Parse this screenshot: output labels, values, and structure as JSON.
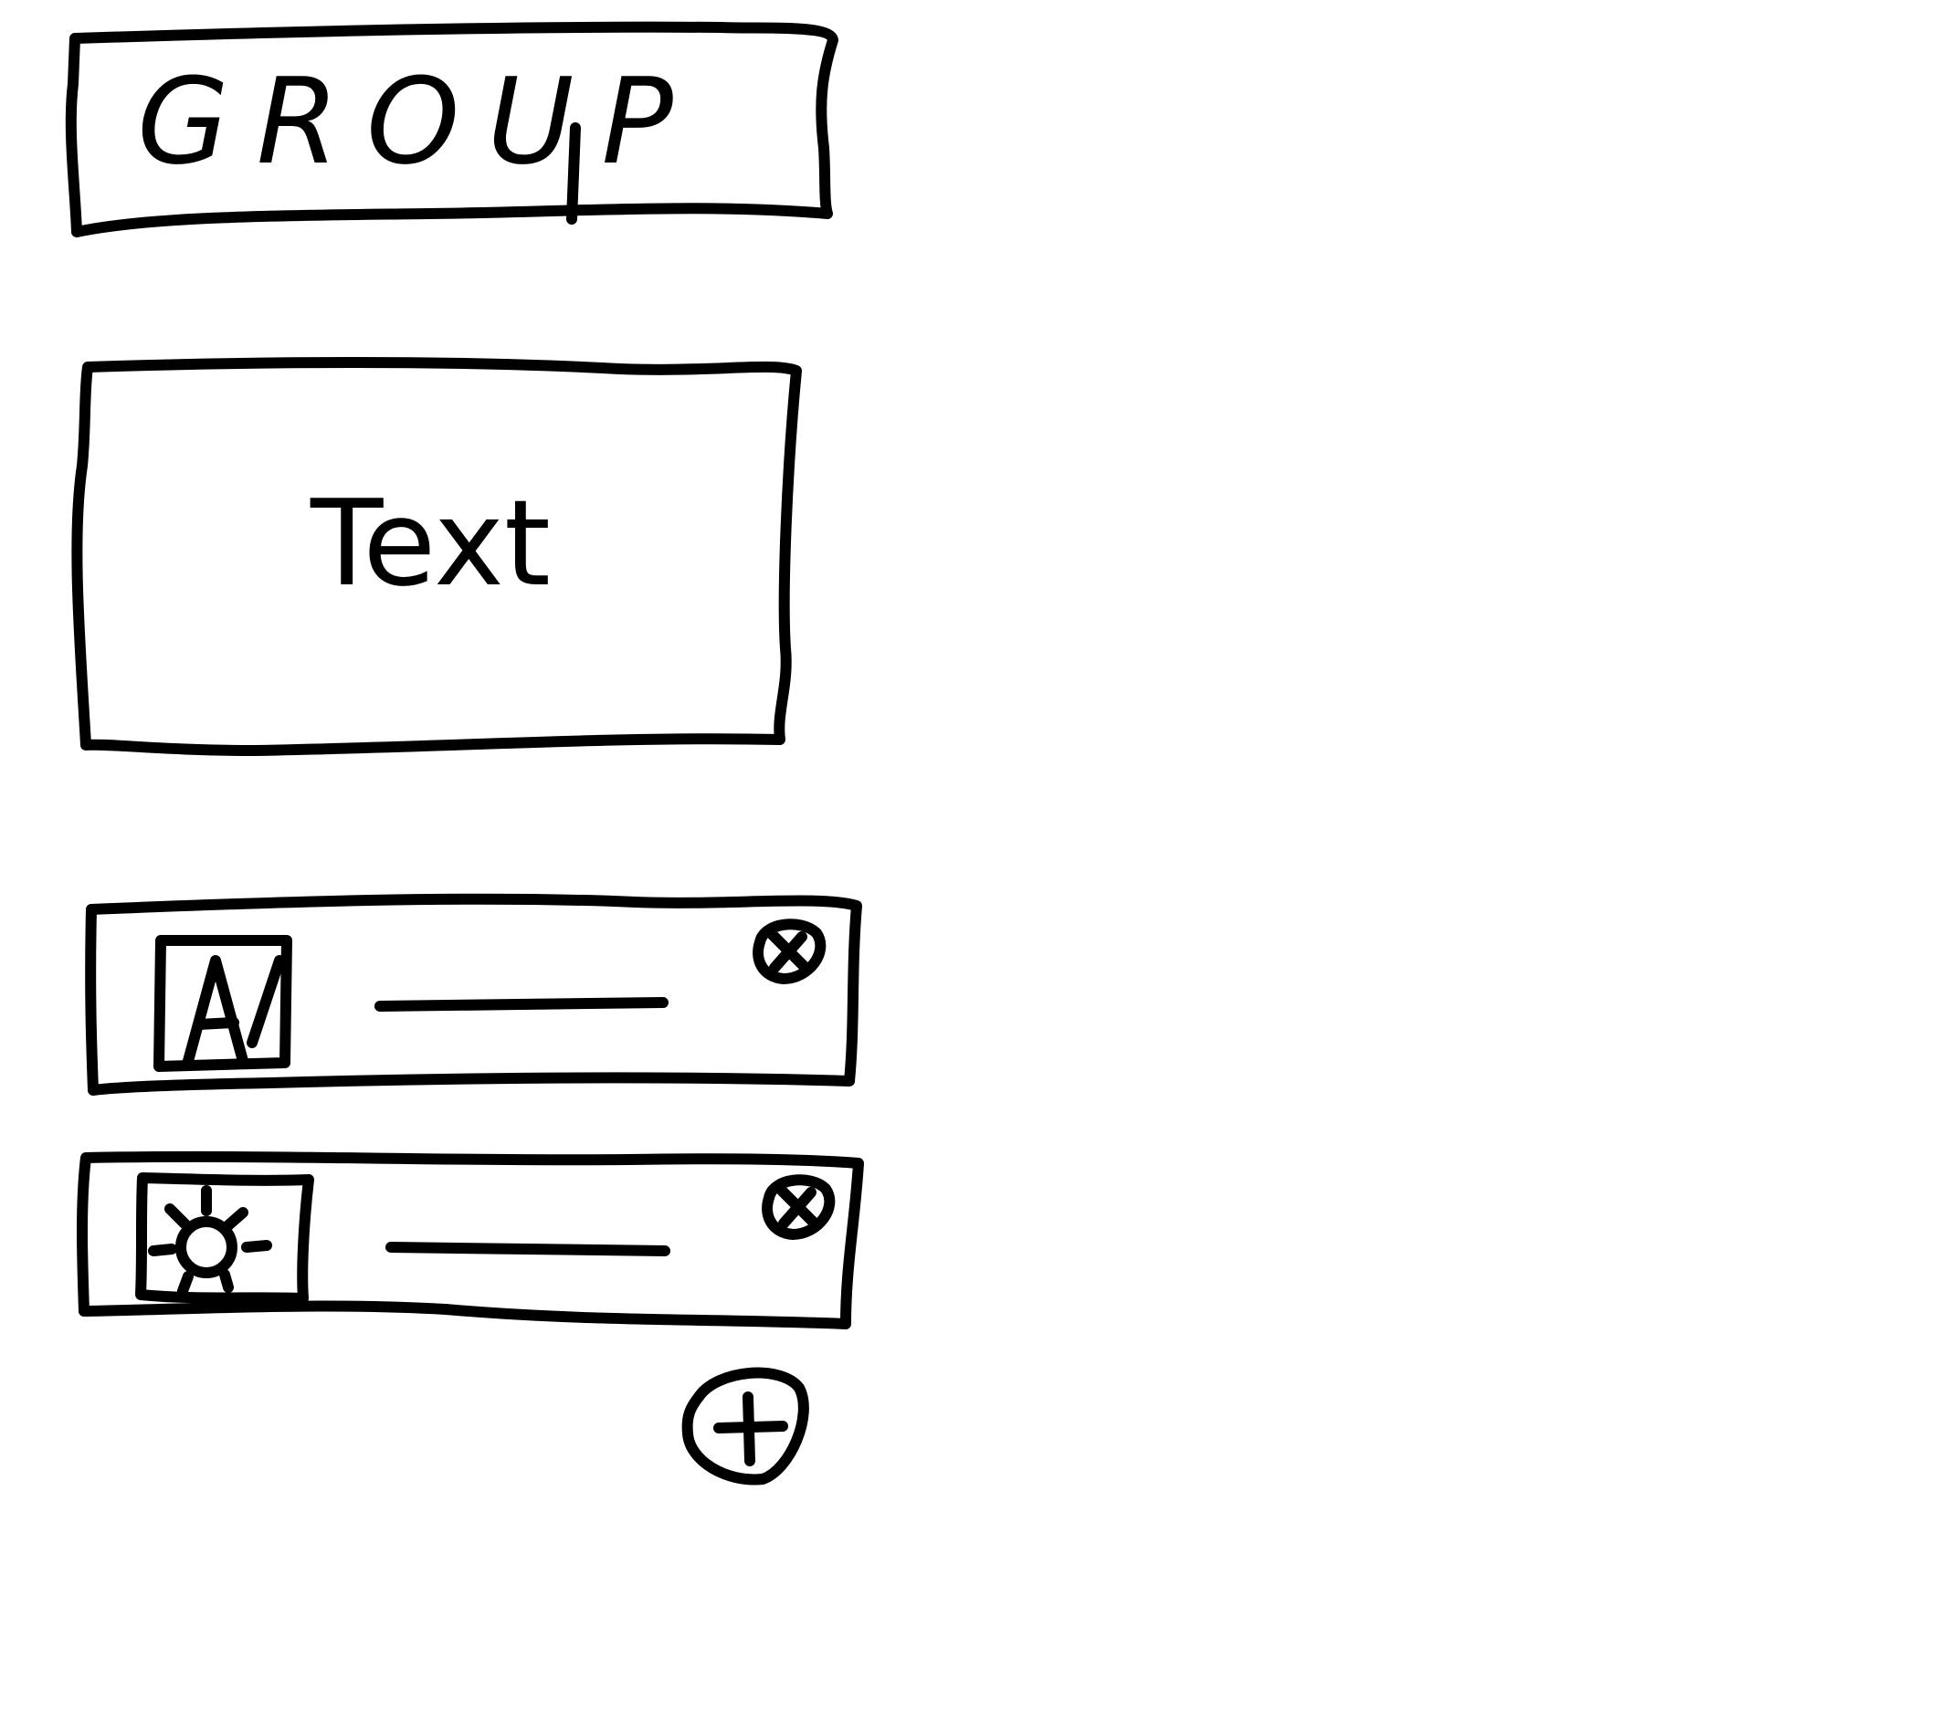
{
  "group": {
    "title": "GROUP"
  },
  "text_block": {
    "label": "Text"
  },
  "list": {
    "items": [
      {
        "icon": "font-image-icon",
        "remove_icon": "remove-icon"
      },
      {
        "icon": "sun-image-icon",
        "remove_icon": "remove-icon"
      }
    ],
    "add_icon": "add-icon"
  },
  "style": {
    "ink_color": "#000000",
    "paper_color": "#ffffff"
  }
}
